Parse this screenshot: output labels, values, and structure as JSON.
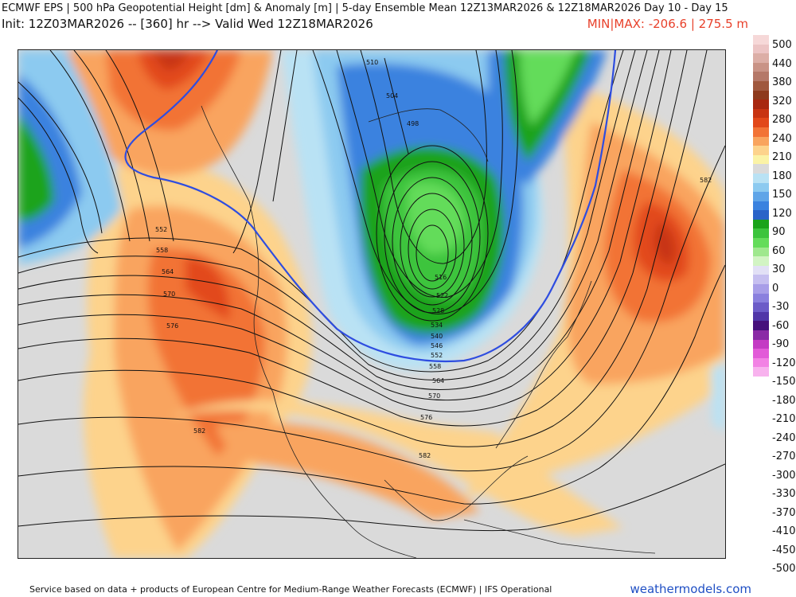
{
  "title": {
    "line1": "ECMWF EPS | 500 hPa Geopotential Height [dm] & Anomaly [m] | 5-day Ensemble Mean 12Z13MAR2026 & 12Z18MAR2026  Day 10 - Day 15",
    "line2": "Init: 12Z03MAR2026 -- [360] hr --> Valid Wed 12Z18MAR2026",
    "minmax": "MIN|MAX: -206.6 | 275.5 m"
  },
  "colorbar": {
    "labels": [
      "500",
      "440",
      "380",
      "320",
      "280",
      "240",
      "210",
      "180",
      "150",
      "120",
      "90",
      "60",
      "30",
      "0",
      "-30",
      "-60",
      "-90",
      "-120",
      "-150",
      "-180",
      "-210",
      "-240",
      "-270",
      "-300",
      "-330",
      "-370",
      "-410",
      "-450",
      "-500"
    ],
    "colors": [
      "#f6d8d8",
      "#ecc4c4",
      "#dcaea6",
      "#c99386",
      "#b57868",
      "#a0583e",
      "#8e3a1c",
      "#a82810",
      "#c83412",
      "#e2481a",
      "#f27336",
      "#f9a45e",
      "#fdd38c",
      "#fbf3a6",
      "#dadada",
      "#b9e2f4",
      "#8ccaf0",
      "#5fa5e8",
      "#3a82df",
      "#2a63c8",
      "#1aa31a",
      "#3cc43c",
      "#64dc5a",
      "#9fe88e",
      "#d2f4c4",
      "#e2e0f6",
      "#c6bff0",
      "#a89ee8",
      "#8a80de",
      "#6c5cc8",
      "#5036a8",
      "#46107c",
      "#8a2aa6",
      "#c43ac4",
      "#e25ad8",
      "#f282e4",
      "#f8b2ee"
    ],
    "unit": "m"
  },
  "map": {
    "height_contour_labels": [
      "510",
      "504",
      "498",
      "552",
      "558",
      "564",
      "570",
      "576",
      "582",
      "516",
      "522",
      "528",
      "534",
      "540",
      "546",
      "552",
      "558",
      "564",
      "570",
      "576",
      "582",
      "582"
    ],
    "anomaly_range": [
      -206.6,
      275.5
    ]
  },
  "footer": {
    "credit": "Service based on data + products of European Centre for Medium-Range Weather Forecasts (ECMWF) | IFS Operational",
    "brand": "weathermodels.com"
  }
}
